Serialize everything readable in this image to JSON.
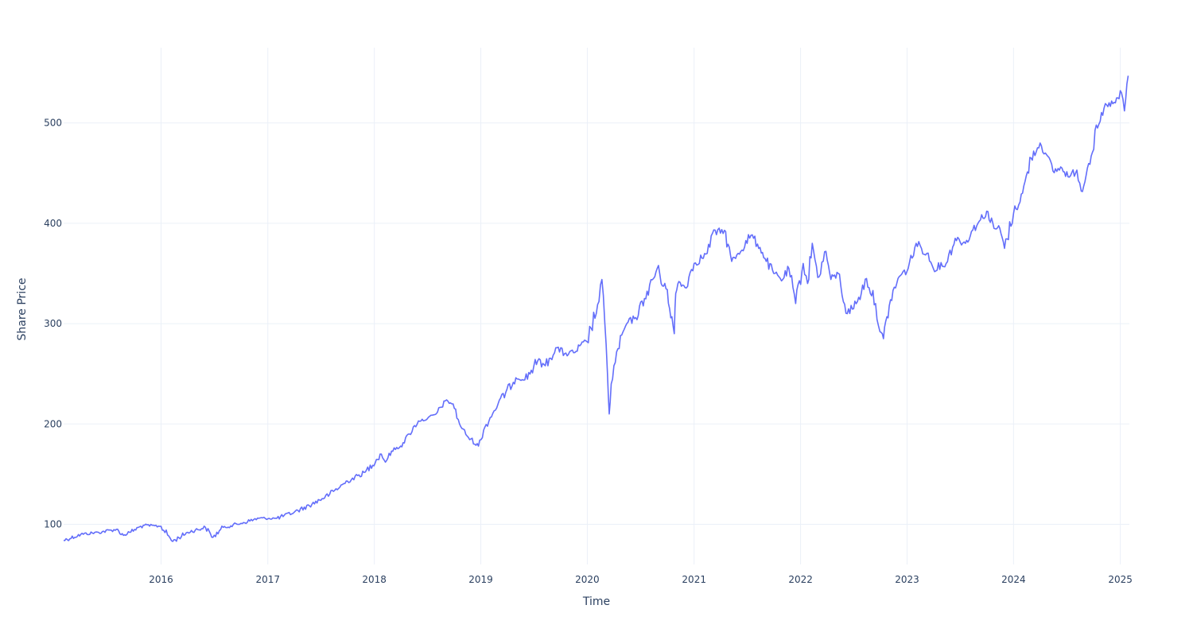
{
  "chart_data": {
    "type": "line",
    "xlabel": "Time",
    "ylabel": "Share Price",
    "xlim": [
      "2015-02-01",
      "2025-02-01"
    ],
    "ylim": [
      60,
      575
    ],
    "grid": true,
    "legend": "none",
    "colors": {
      "line": "#636efa",
      "grid": "#ebf0f8",
      "text": "#2a3f5f"
    },
    "x_ticks": [
      "2016",
      "2017",
      "2018",
      "2019",
      "2020",
      "2021",
      "2022",
      "2023",
      "2024",
      "2025"
    ],
    "y_ticks": [
      100,
      200,
      300,
      400,
      500
    ],
    "series": [
      {
        "x": [
          "2015-02-01",
          "2015-04-01",
          "2015-06-01",
          "2015-08-01",
          "2015-08-25",
          "2015-09-15",
          "2015-11-01",
          "2016-01-01",
          "2016-02-10",
          "2016-04-01",
          "2016-06-01",
          "2016-06-27",
          "2016-08-01",
          "2016-10-01",
          "2016-12-01",
          "2017-02-01",
          "2017-04-01",
          "2017-06-01",
          "2017-08-01",
          "2017-10-01",
          "2017-12-01",
          "2018-01-25",
          "2018-02-08",
          "2018-03-01",
          "2018-04-01",
          "2018-05-01",
          "2018-06-01",
          "2018-07-01",
          "2018-08-01",
          "2018-09-01",
          "2018-09-28",
          "2018-10-20",
          "2018-11-15",
          "2018-12-24",
          "2019-01-15",
          "2019-03-01",
          "2019-05-01",
          "2019-06-01",
          "2019-07-15",
          "2019-08-10",
          "2019-09-15",
          "2019-10-15",
          "2019-11-15",
          "2019-12-31",
          "2020-02-10",
          "2020-02-20",
          "2020-03-01",
          "2020-03-10",
          "2020-03-16",
          "2020-03-23",
          "2020-04-15",
          "2020-05-15",
          "2020-06-15",
          "2020-07-15",
          "2020-08-15",
          "2020-09-01",
          "2020-09-10",
          "2020-10-01",
          "2020-10-25",
          "2020-10-30",
          "2020-11-10",
          "2020-12-01",
          "2021-01-01",
          "2021-02-15",
          "2021-03-05",
          "2021-04-15",
          "2021-05-10",
          "2021-06-01",
          "2021-07-15",
          "2021-08-15",
          "2021-09-01",
          "2021-10-01",
          "2021-11-01",
          "2021-11-22",
          "2021-12-15",
          "2022-01-10",
          "2022-01-25",
          "2022-02-10",
          "2022-03-01",
          "2022-03-29",
          "2022-04-15",
          "2022-05-10",
          "2022-06-10",
          "2022-07-15",
          "2022-08-15",
          "2022-09-15",
          "2022-09-30",
          "2022-10-12",
          "2022-11-01",
          "2022-12-01",
          "2023-01-05",
          "2023-02-01",
          "2023-03-10",
          "2023-04-01",
          "2023-05-15",
          "2023-06-15",
          "2023-07-20",
          "2023-08-10",
          "2023-09-01",
          "2023-10-01",
          "2023-10-26",
          "2023-11-15",
          "2023-12-01",
          "2024-01-01",
          "2024-02-01",
          "2024-03-01",
          "2024-04-01",
          "2024-04-19",
          "2024-05-15",
          "2024-06-15",
          "2024-07-10",
          "2024-08-05",
          "2024-08-20",
          "2024-09-10",
          "2024-10-15",
          "2024-11-15",
          "2024-12-15",
          "2025-01-05",
          "2025-01-15",
          "2025-01-28"
        ],
        "values": [
          84,
          90,
          92,
          95,
          89,
          92,
          99,
          98,
          83,
          92,
          97,
          87,
          97,
          101,
          106,
          106,
          112,
          120,
          130,
          143,
          152,
          170,
          162,
          173,
          178,
          190,
          203,
          205,
          210,
          223,
          220,
          200,
          188,
          178,
          197,
          220,
          246,
          244,
          263,
          258,
          276,
          270,
          271,
          282,
          322,
          344,
          300,
          250,
          210,
          240,
          275,
          300,
          306,
          325,
          345,
          358,
          340,
          334,
          290,
          330,
          342,
          336,
          360,
          370,
          390,
          393,
          362,
          370,
          388,
          376,
          365,
          350,
          344,
          355,
          320,
          360,
          340,
          380,
          346,
          372,
          344,
          350,
          310,
          322,
          345,
          320,
          292,
          285,
          318,
          345,
          355,
          380,
          370,
          355,
          360,
          385,
          380,
          392,
          400,
          412,
          395,
          395,
          375,
          410,
          430,
          465,
          480,
          470,
          452,
          455,
          446,
          453,
          432,
          455,
          495,
          518,
          520,
          530,
          512,
          547
        ]
      }
    ]
  }
}
